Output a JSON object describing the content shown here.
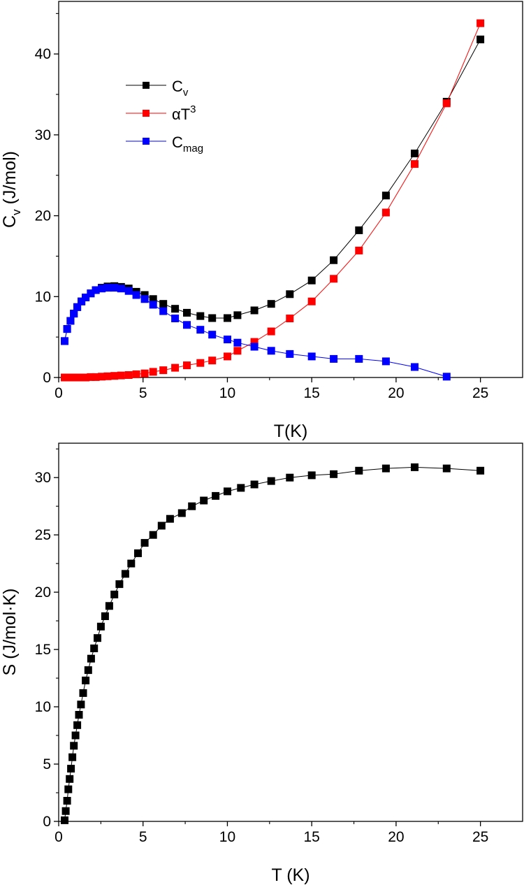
{
  "chart_data": [
    {
      "type": "line",
      "xlabel": "T(K)",
      "ylabel": {
        "base": "C",
        "sub": "v",
        "rest": " (J/mol)"
      },
      "xlim": [
        0,
        27.5
      ],
      "ylim": [
        0,
        46.5
      ],
      "xticks": [
        0,
        5,
        10,
        15,
        20,
        25
      ],
      "yticks": [
        0,
        10,
        20,
        30,
        40
      ],
      "legend_position": "upper-left",
      "series": [
        {
          "name": "Cv",
          "legend": {
            "base": "C",
            "sub": "v",
            "sup": ""
          },
          "color": "#000000",
          "x": [
            0.35,
            0.5,
            0.7,
            0.9,
            1.1,
            1.35,
            1.6,
            1.9,
            2.2,
            2.55,
            2.9,
            3.3,
            3.7,
            4.15,
            4.6,
            5.1,
            5.6,
            6.2,
            6.9,
            7.6,
            8.4,
            9.1,
            10.0,
            10.6,
            11.6,
            12.6,
            13.7,
            15.0,
            16.3,
            17.8,
            19.4,
            21.1,
            23.0,
            25.0
          ],
          "y": [
            4.5,
            6.0,
            7.0,
            7.9,
            8.7,
            9.4,
            9.9,
            10.4,
            10.8,
            11.1,
            11.25,
            11.3,
            11.2,
            11.0,
            10.6,
            10.2,
            9.7,
            9.1,
            8.5,
            8.0,
            7.6,
            7.35,
            7.35,
            7.7,
            8.3,
            9.1,
            10.3,
            12.0,
            14.5,
            18.2,
            22.5,
            27.7,
            34.1,
            41.8
          ]
        },
        {
          "name": "aT3",
          "legend": {
            "base": "αT",
            "sub": "",
            "sup": "3"
          },
          "color": "#ff0000",
          "x": [
            0.35,
            0.5,
            0.7,
            0.9,
            1.1,
            1.35,
            1.6,
            1.9,
            2.2,
            2.55,
            2.9,
            3.3,
            3.7,
            4.15,
            4.6,
            5.1,
            5.6,
            6.2,
            6.9,
            7.6,
            8.4,
            9.1,
            10.0,
            10.6,
            11.6,
            12.6,
            13.7,
            15.0,
            16.3,
            17.8,
            19.4,
            21.1,
            23.0,
            25.0
          ],
          "y": [
            0.0,
            0.0,
            0.0,
            0.0,
            0.0,
            0.0,
            0.0,
            0.05,
            0.05,
            0.1,
            0.15,
            0.2,
            0.25,
            0.3,
            0.4,
            0.5,
            0.7,
            0.9,
            1.2,
            1.5,
            1.8,
            2.1,
            2.6,
            3.3,
            4.4,
            5.7,
            7.3,
            9.4,
            12.2,
            15.7,
            20.4,
            26.4,
            33.9,
            43.8
          ]
        },
        {
          "name": "Cmag",
          "legend": {
            "base": "C",
            "sub": "mag",
            "sup": ""
          },
          "color": "#0000ff",
          "x": [
            0.35,
            0.5,
            0.7,
            0.9,
            1.1,
            1.35,
            1.6,
            1.9,
            2.2,
            2.55,
            2.9,
            3.3,
            3.7,
            4.15,
            4.6,
            5.1,
            5.6,
            6.2,
            6.9,
            7.6,
            8.4,
            9.1,
            10.0,
            10.6,
            11.6,
            12.6,
            13.7,
            15.0,
            16.3,
            17.8,
            19.4,
            21.1,
            23.0
          ],
          "y": [
            4.5,
            6.0,
            7.0,
            7.9,
            8.7,
            9.4,
            9.9,
            10.4,
            10.8,
            11.0,
            11.1,
            11.1,
            11.0,
            10.7,
            10.2,
            9.7,
            9.0,
            8.2,
            7.3,
            6.5,
            5.9,
            5.3,
            4.7,
            4.3,
            3.8,
            3.3,
            2.9,
            2.6,
            2.3,
            2.3,
            2.0,
            1.3,
            0.1
          ]
        }
      ]
    },
    {
      "type": "line",
      "xlabel": "T (K)",
      "ylabel": {
        "base": "S (J/mol·K)",
        "sub": "",
        "rest": ""
      },
      "xlim": [
        0,
        27.5
      ],
      "ylim": [
        0,
        33.0
      ],
      "xticks": [
        0,
        5,
        10,
        15,
        20,
        25
      ],
      "yticks": [
        0,
        5,
        10,
        15,
        20,
        25,
        30
      ],
      "series": [
        {
          "name": "S",
          "color": "#000000",
          "x": [
            0.35,
            0.42,
            0.5,
            0.57,
            0.65,
            0.73,
            0.81,
            0.9,
            1.0,
            1.1,
            1.2,
            1.32,
            1.45,
            1.6,
            1.75,
            1.92,
            2.1,
            2.3,
            2.5,
            2.75,
            3.0,
            3.3,
            3.6,
            3.95,
            4.3,
            4.7,
            5.1,
            5.6,
            6.1,
            6.6,
            7.3,
            7.9,
            8.6,
            9.3,
            10.0,
            10.8,
            11.6,
            12.6,
            13.7,
            15.0,
            16.3,
            17.8,
            19.4,
            21.1,
            23.0,
            25.0
          ],
          "y": [
            0.1,
            0.9,
            1.8,
            2.8,
            3.7,
            4.6,
            5.6,
            6.6,
            7.5,
            8.4,
            9.3,
            10.2,
            11.2,
            12.3,
            13.2,
            14.2,
            15.1,
            16.0,
            17.0,
            17.9,
            18.8,
            19.8,
            20.7,
            21.6,
            22.5,
            23.4,
            24.3,
            25.0,
            25.8,
            26.4,
            26.9,
            27.5,
            28.0,
            28.4,
            28.8,
            29.1,
            29.4,
            29.7,
            30.0,
            30.2,
            30.3,
            30.6,
            30.8,
            30.9,
            30.8,
            30.6
          ]
        }
      ]
    }
  ]
}
